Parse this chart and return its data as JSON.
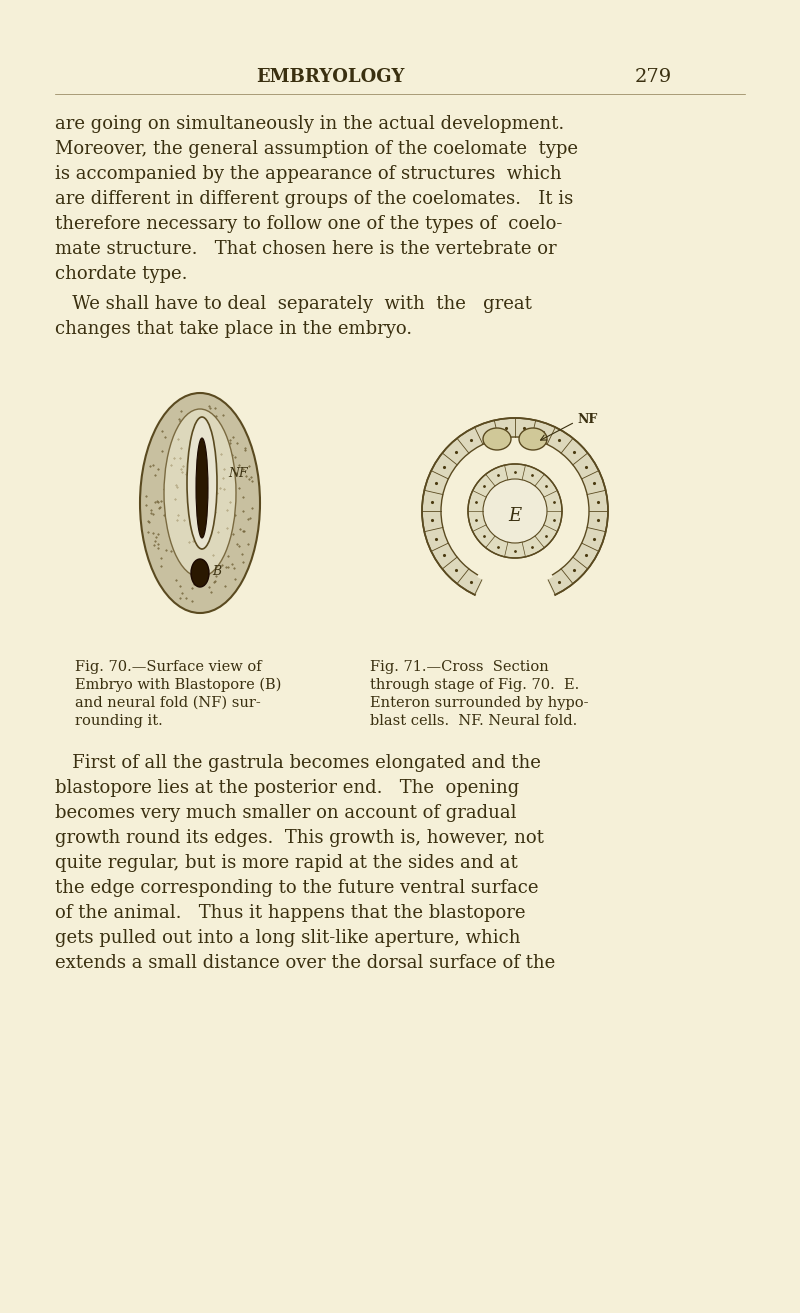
{
  "bg_color": "#f5f0d8",
  "text_color": "#3a3010",
  "header": "EMBRYOLOGY",
  "page_num": "279",
  "para1_lines": [
    "are going on simultaneously in the actual development.",
    "Moreover, the general assumption of the coelomate  type",
    "is accompanied by the appearance of structures  which",
    "are different in different groups of the coelomates.   It is",
    "therefore necessary to follow one of the types of  coelo-",
    "mate structure.   That chosen here is the vertebrate or",
    "chordate type."
  ],
  "para2_lines": [
    "   We shall have to deal  separately  with  the   great",
    "changes that take place in the embryo."
  ],
  "cap70_lines": [
    "Fig. 70.—Surface view of",
    "Embryo with Blastopore (B)",
    "and neural fold (NF) sur-",
    "rounding it."
  ],
  "cap71_lines": [
    "Fig. 71.—Cross  Section",
    "through stage of Fig. 70.  E.",
    "Enteron surrounded by hypo-",
    "blast cells.  NF. Neural fold."
  ],
  "para3_lines": [
    "   First of all the gastrula becomes elongated and the",
    "blastopore lies at the posterior end.   The  opening",
    "becomes very much smaller on account of gradual",
    "growth round its edges.  This growth is, however, not",
    "quite regular, but is more rapid at the sides and at",
    "the edge corresponding to the future ventral surface",
    "of the animal.   Thus it happens that the blastopore",
    "gets pulled out into a long slit-like aperture, which",
    "extends a small distance over the dorsal surface of the"
  ]
}
